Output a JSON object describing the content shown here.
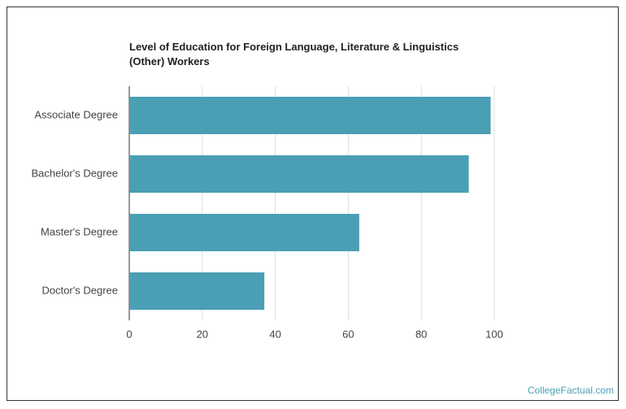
{
  "chart_data": {
    "type": "bar",
    "orientation": "horizontal",
    "title": "Level of Education for Foreign Language, Literature & Linguistics (Other) Workers",
    "categories": [
      "Associate Degree",
      "Bachelor's Degree",
      "Master's Degree",
      "Doctor's Degree"
    ],
    "values": [
      99,
      93,
      63,
      37
    ],
    "color": "#4a9fb5",
    "xlim": [
      0,
      100
    ],
    "xticks": [
      0,
      20,
      40,
      60,
      80,
      100
    ],
    "grid": true
  },
  "source": "CollegeFactual.com"
}
